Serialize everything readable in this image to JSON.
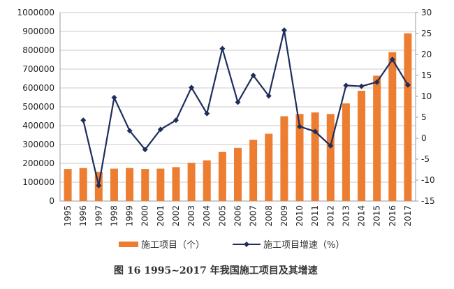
{
  "chart_data": {
    "type": "bar+line",
    "categories": [
      "1995",
      "1996",
      "1997",
      "1998",
      "1999",
      "2000",
      "2001",
      "2002",
      "2003",
      "2004",
      "2005",
      "2006",
      "2007",
      "2008",
      "2009",
      "2010",
      "2011",
      "2012",
      "2013",
      "2014",
      "2015",
      "2016",
      "2017"
    ],
    "series": [
      {
        "name": "施工项目（个）",
        "type": "bar",
        "axis": "left",
        "color": "#ed7d31",
        "values": [
          170000,
          175000,
          155000,
          172000,
          175000,
          170000,
          172000,
          180000,
          203000,
          216000,
          260000,
          282000,
          325000,
          357000,
          450000,
          462000,
          470000,
          462000,
          518000,
          585000,
          665000,
          790000,
          890000
        ]
      },
      {
        "name": "施工项目增速（%）",
        "type": "line",
        "axis": "right",
        "color": "#1f2d5c",
        "marker": "diamond",
        "values": [
          null,
          4.3,
          -11.3,
          9.7,
          1.8,
          -2.7,
          2.1,
          4.3,
          12.1,
          5.9,
          21.4,
          8.6,
          15.0,
          10.1,
          25.8,
          2.8,
          1.6,
          -1.8,
          12.6,
          12.4,
          13.4,
          18.8,
          12.7
        ]
      }
    ],
    "left_axis": {
      "ylim": [
        0,
        1000000
      ],
      "ticks": [
        "0",
        "100000",
        "200000",
        "300000",
        "400000",
        "500000",
        "600000",
        "700000",
        "800000",
        "900000",
        "1000000"
      ]
    },
    "right_axis": {
      "ylim": [
        -15,
        30
      ],
      "ticks": [
        "-15",
        "-10",
        "-5",
        "0",
        "5",
        "10",
        "15",
        "20",
        "25",
        "30"
      ]
    },
    "grid": true,
    "legend": "bottom",
    "title": "图 16   1995~2017 年我国施工项目及其增速"
  }
}
